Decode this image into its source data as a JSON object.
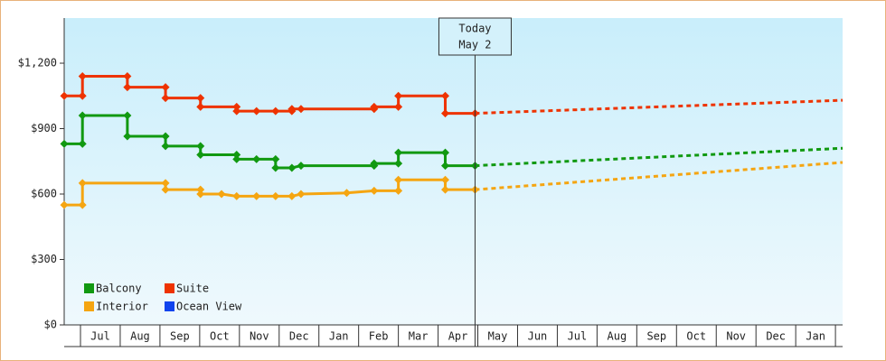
{
  "chart_data": {
    "type": "line",
    "xlim": [
      -0.41,
      19.18
    ],
    "ylim": [
      0,
      1407
    ],
    "xticks": [
      {
        "value": 0.5,
        "label": "Jul"
      },
      {
        "value": 1.5,
        "label": "Aug"
      },
      {
        "value": 2.5,
        "label": "Sep"
      },
      {
        "value": 3.5,
        "label": "Oct"
      },
      {
        "value": 4.5,
        "label": "Nov"
      },
      {
        "value": 5.5,
        "label": "Dec"
      },
      {
        "value": 6.5,
        "label": "Jan"
      },
      {
        "value": 7.5,
        "label": "Feb"
      },
      {
        "value": 8.5,
        "label": "Mar"
      },
      {
        "value": 9.5,
        "label": "Apr"
      },
      {
        "value": 10.5,
        "label": "May"
      },
      {
        "value": 11.5,
        "label": "Jun"
      },
      {
        "value": 12.5,
        "label": "Jul"
      },
      {
        "value": 13.5,
        "label": "Aug"
      },
      {
        "value": 14.5,
        "label": "Sep"
      },
      {
        "value": 15.5,
        "label": "Oct"
      },
      {
        "value": 16.5,
        "label": "Nov"
      },
      {
        "value": 17.5,
        "label": "Dec"
      },
      {
        "value": 18.5,
        "label": "Jan"
      }
    ],
    "yticks": [
      {
        "value": 0,
        "label": "$0"
      },
      {
        "value": 300,
        "label": "$300"
      },
      {
        "value": 600,
        "label": "$600"
      },
      {
        "value": 900,
        "label": "$900"
      },
      {
        "value": 1200,
        "label": "$1,200"
      }
    ],
    "today": {
      "x": 9.93,
      "label": [
        "Today",
        "May 2"
      ]
    },
    "series": [
      {
        "name": "Balcony",
        "color": "#119911",
        "x": [
          -0.41,
          0.05,
          0.05,
          1.18,
          1.18,
          2.14,
          2.14,
          3.02,
          3.02,
          3.93,
          3.93,
          4.43,
          4.91,
          4.91,
          5.32,
          5.55,
          7.39,
          7.39,
          8.0,
          8.0,
          9.18,
          9.18,
          9.93
        ],
        "values": [
          830,
          830,
          960,
          960,
          865,
          865,
          820,
          820,
          780,
          780,
          760,
          760,
          760,
          720,
          720,
          730,
          730,
          740,
          740,
          790,
          790,
          730,
          730
        ],
        "forecast": {
          "x": [
            9.93,
            19.18
          ],
          "values": [
            730,
            810
          ]
        }
      },
      {
        "name": "Suite",
        "color": "#ee3300",
        "x": [
          -0.41,
          0.05,
          0.05,
          1.18,
          1.18,
          2.14,
          2.14,
          3.02,
          3.02,
          3.93,
          3.93,
          4.43,
          4.91,
          5.32,
          5.32,
          5.55,
          7.39,
          7.39,
          8.0,
          8.0,
          9.18,
          9.18,
          9.93
        ],
        "values": [
          1050,
          1050,
          1140,
          1140,
          1090,
          1090,
          1040,
          1040,
          1000,
          1000,
          980,
          980,
          980,
          980,
          990,
          990,
          990,
          1000,
          1000,
          1050,
          1050,
          970,
          970
        ],
        "forecast": {
          "x": [
            9.93,
            19.18
          ],
          "values": [
            970,
            1030
          ]
        }
      },
      {
        "name": "Interior",
        "color": "#f5a511",
        "x": [
          -0.41,
          0.05,
          0.05,
          2.14,
          2.14,
          3.02,
          3.02,
          3.55,
          3.93,
          4.43,
          4.91,
          5.32,
          5.55,
          6.7,
          7.39,
          8.0,
          8.0,
          9.18,
          9.18,
          9.93
        ],
        "values": [
          550,
          550,
          650,
          650,
          620,
          620,
          600,
          600,
          590,
          590,
          590,
          590,
          600,
          605,
          615,
          615,
          665,
          665,
          620,
          620
        ],
        "forecast": {
          "x": [
            9.93,
            19.18
          ],
          "values": [
            620,
            745
          ]
        }
      },
      {
        "name": "Ocean View",
        "color": "#1144ee",
        "x": [],
        "values": []
      }
    ]
  }
}
